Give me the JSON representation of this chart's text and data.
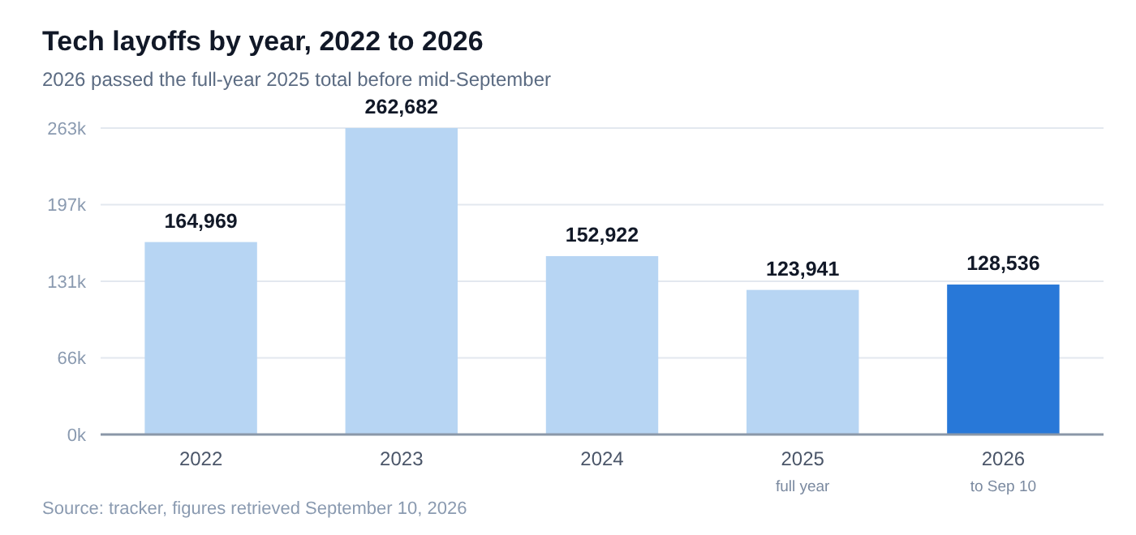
{
  "chart_data": {
    "type": "bar",
    "title": "Tech layoffs by year, 2022 to 2026",
    "subtitle": "2026 passed the full-year 2025 total before mid-September",
    "categories": [
      "2022",
      "2023",
      "2024",
      "2025\nfull year",
      "2026\nto Sep 10"
    ],
    "values": [
      164969,
      262682,
      152922,
      123941,
      128536
    ],
    "colors": [
      "#b7d5f3",
      "#b7d5f3",
      "#b7d5f3",
      "#b7d5f3",
      "#2878d8"
    ],
    "ylim": [
      0,
      262682
    ],
    "yticks": [
      {
        "value": 0,
        "label": "0k"
      },
      {
        "value": 65670.5,
        "label": "66k"
      },
      {
        "value": 131341,
        "label": "131k"
      },
      {
        "value": 197011.5,
        "label": "197k"
      },
      {
        "value": 262682,
        "label": "263k"
      }
    ],
    "value_labels": [
      "164,969",
      "262,682",
      "152,922",
      "123,941",
      "128,536"
    ],
    "grid": "y",
    "annotations": [
      "Source: tracker, figures retrieved September 10, 2026"
    ]
  }
}
